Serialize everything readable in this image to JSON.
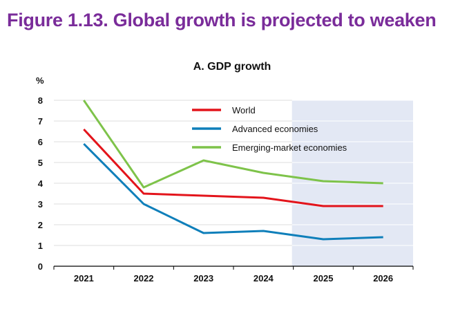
{
  "figure": {
    "title": "Figure 1.13. Global growth is projected to weaken"
  },
  "chart_data": {
    "type": "line",
    "title": "A. GDP growth",
    "unit_label": "%",
    "xlabel": "",
    "ylabel": "",
    "x": [
      "2021",
      "2022",
      "2023",
      "2024",
      "2025",
      "2026"
    ],
    "ylim": [
      0,
      8
    ],
    "yticks": [
      0,
      1,
      2,
      3,
      4,
      5,
      6,
      7,
      8
    ],
    "grid": true,
    "projection_shading": [
      "2025",
      "2026"
    ],
    "legend_position": "top-center",
    "series": [
      {
        "name": "World",
        "color": "#e3141b",
        "values": [
          6.6,
          3.5,
          3.4,
          3.3,
          2.9,
          2.9
        ]
      },
      {
        "name": "Advanced economies",
        "color": "#0f7fba",
        "values": [
          5.9,
          3.0,
          1.6,
          1.7,
          1.3,
          1.4
        ]
      },
      {
        "name": "Emerging-market economies",
        "color": "#7ec34a",
        "values": [
          8.0,
          3.8,
          5.1,
          4.5,
          4.1,
          4.0
        ]
      }
    ]
  }
}
